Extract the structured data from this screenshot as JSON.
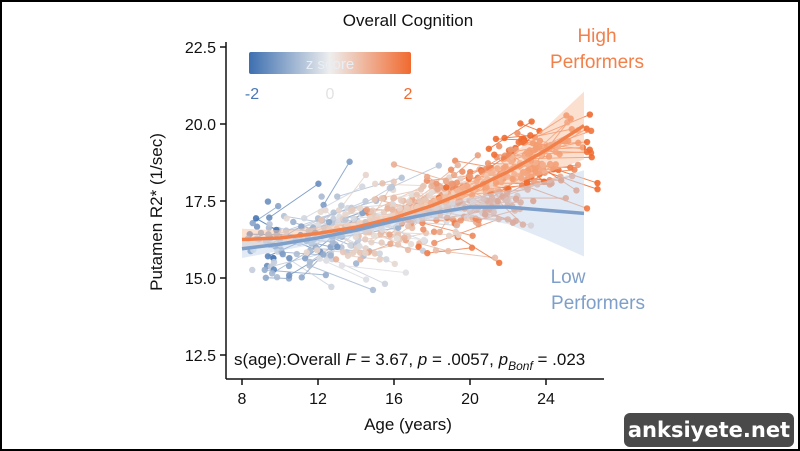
{
  "chart_data": {
    "type": "scatter",
    "title": "Overall Cognition",
    "xlabel": "Age (years)",
    "ylabel": "Putamen R2* (1/sec)",
    "xlim": [
      7.2,
      27
    ],
    "ylim": [
      12.2,
      22.6
    ],
    "x_ticks": [
      "8",
      "12",
      "16",
      "20",
      "24"
    ],
    "y_ticks": [
      "12.5",
      "15.0",
      "17.5",
      "20.0",
      "22.5"
    ],
    "colorbar": {
      "label": "z score",
      "ticks": [
        "-2",
        "0",
        "2"
      ],
      "low_color": "#3d6fb0",
      "mid_color": "#eeeeee",
      "high_color": "#f06a2f"
    },
    "annotation": {
      "stat_prefix": "s(age):Overall ",
      "F_label": "F",
      "F_value": " = 3.67, ",
      "p_label": "p",
      "p_value": " = .0057, ",
      "pb_label": "p",
      "pb_sub": "Bonf",
      "pb_value": " = .023"
    },
    "series": [
      {
        "name": "High Performers",
        "label_line1": "High",
        "label_line2": "Performers",
        "color": "#f2804a",
        "fit_x": [
          8,
          10,
          12,
          14,
          16,
          18,
          20,
          22,
          24,
          26
        ],
        "fit_y": [
          16.25,
          16.3,
          16.45,
          16.65,
          16.95,
          17.35,
          17.85,
          18.45,
          19.15,
          19.95
        ],
        "ci_half_width": [
          0.35,
          0.25,
          0.2,
          0.18,
          0.18,
          0.2,
          0.28,
          0.45,
          0.75,
          1.1
        ]
      },
      {
        "name": "Low Performers",
        "label_line1": "Low",
        "label_line2": "Performers",
        "color": "#7e9fc9",
        "fit_x": [
          8,
          10,
          12,
          14,
          16,
          18,
          20,
          22,
          24,
          26
        ],
        "fit_y": [
          15.95,
          16.1,
          16.3,
          16.55,
          16.85,
          17.1,
          17.3,
          17.3,
          17.2,
          17.1
        ],
        "ci_half_width": [
          0.3,
          0.22,
          0.18,
          0.17,
          0.18,
          0.22,
          0.32,
          0.55,
          0.95,
          1.4
        ]
      }
    ]
  },
  "watermark": "anksiyete.net"
}
